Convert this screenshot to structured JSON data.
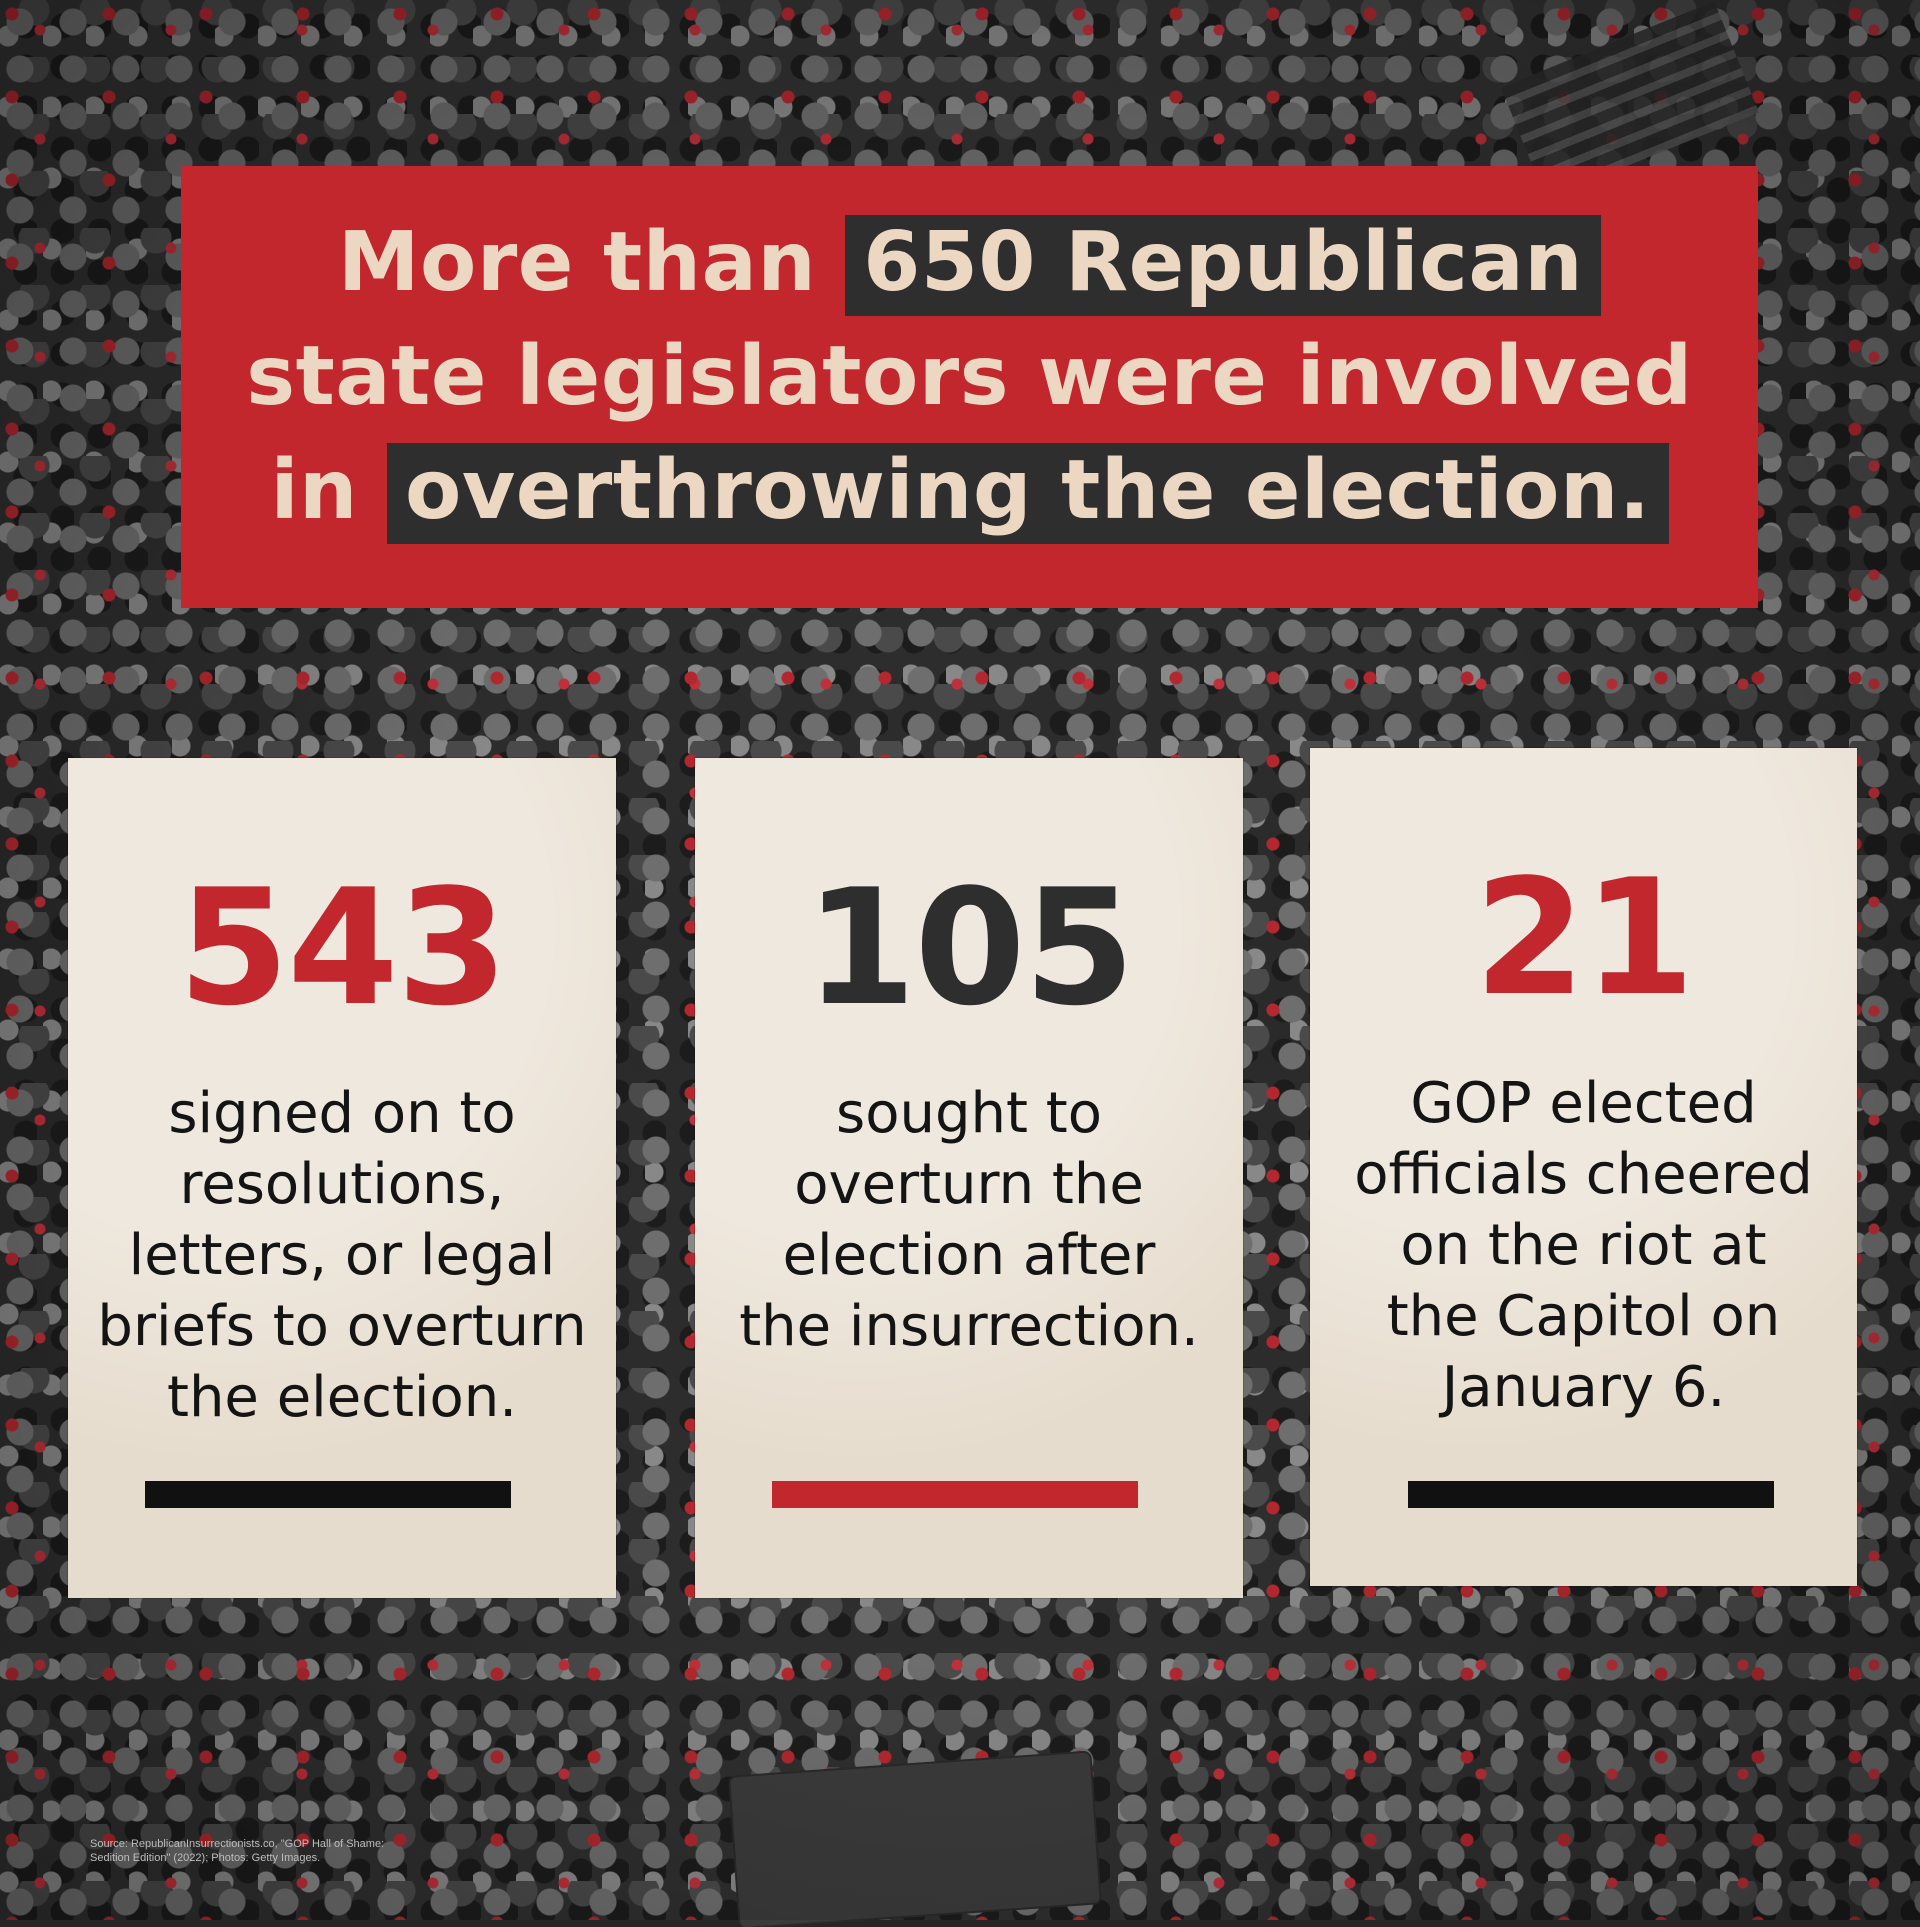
{
  "colors": {
    "red": "#c1272d",
    "cream_text": "#ecd7c2",
    "dark_highlight": "#2e2e2e",
    "paper": "#e6dccd",
    "number_dark": "#2e2e2e",
    "bar_black": "#111111"
  },
  "headline": {
    "line1_pre": "More than ",
    "line1_highlight": "650 Republican",
    "line2": "state legislators were involved",
    "line3_pre": "in ",
    "line3_highlight": "overthrowing the election."
  },
  "cards": [
    {
      "number": "543",
      "number_color": "#c1272d",
      "lines": [
        "signed on to",
        "resolutions,",
        "letters, or legal",
        "briefs to overturn",
        "the election."
      ],
      "bar_color": "#111111"
    },
    {
      "number": "105",
      "number_color": "#2e2e2e",
      "lines": [
        "sought to",
        "overturn the",
        "election after",
        "the insurrection."
      ],
      "bar_color": "#c1272d"
    },
    {
      "number": "21",
      "number_color": "#c1272d",
      "lines": [
        "GOP elected",
        "officials cheered",
        "on the riot at",
        "the Capitol on",
        "January 6."
      ],
      "bar_color": "#111111"
    }
  ],
  "source": {
    "line1": "Source: RepublicanInsurrectionists.co, \"GOP Hall of Shame:",
    "line2": "Sedition Edition\" (2022); Photos: Getty Images."
  }
}
